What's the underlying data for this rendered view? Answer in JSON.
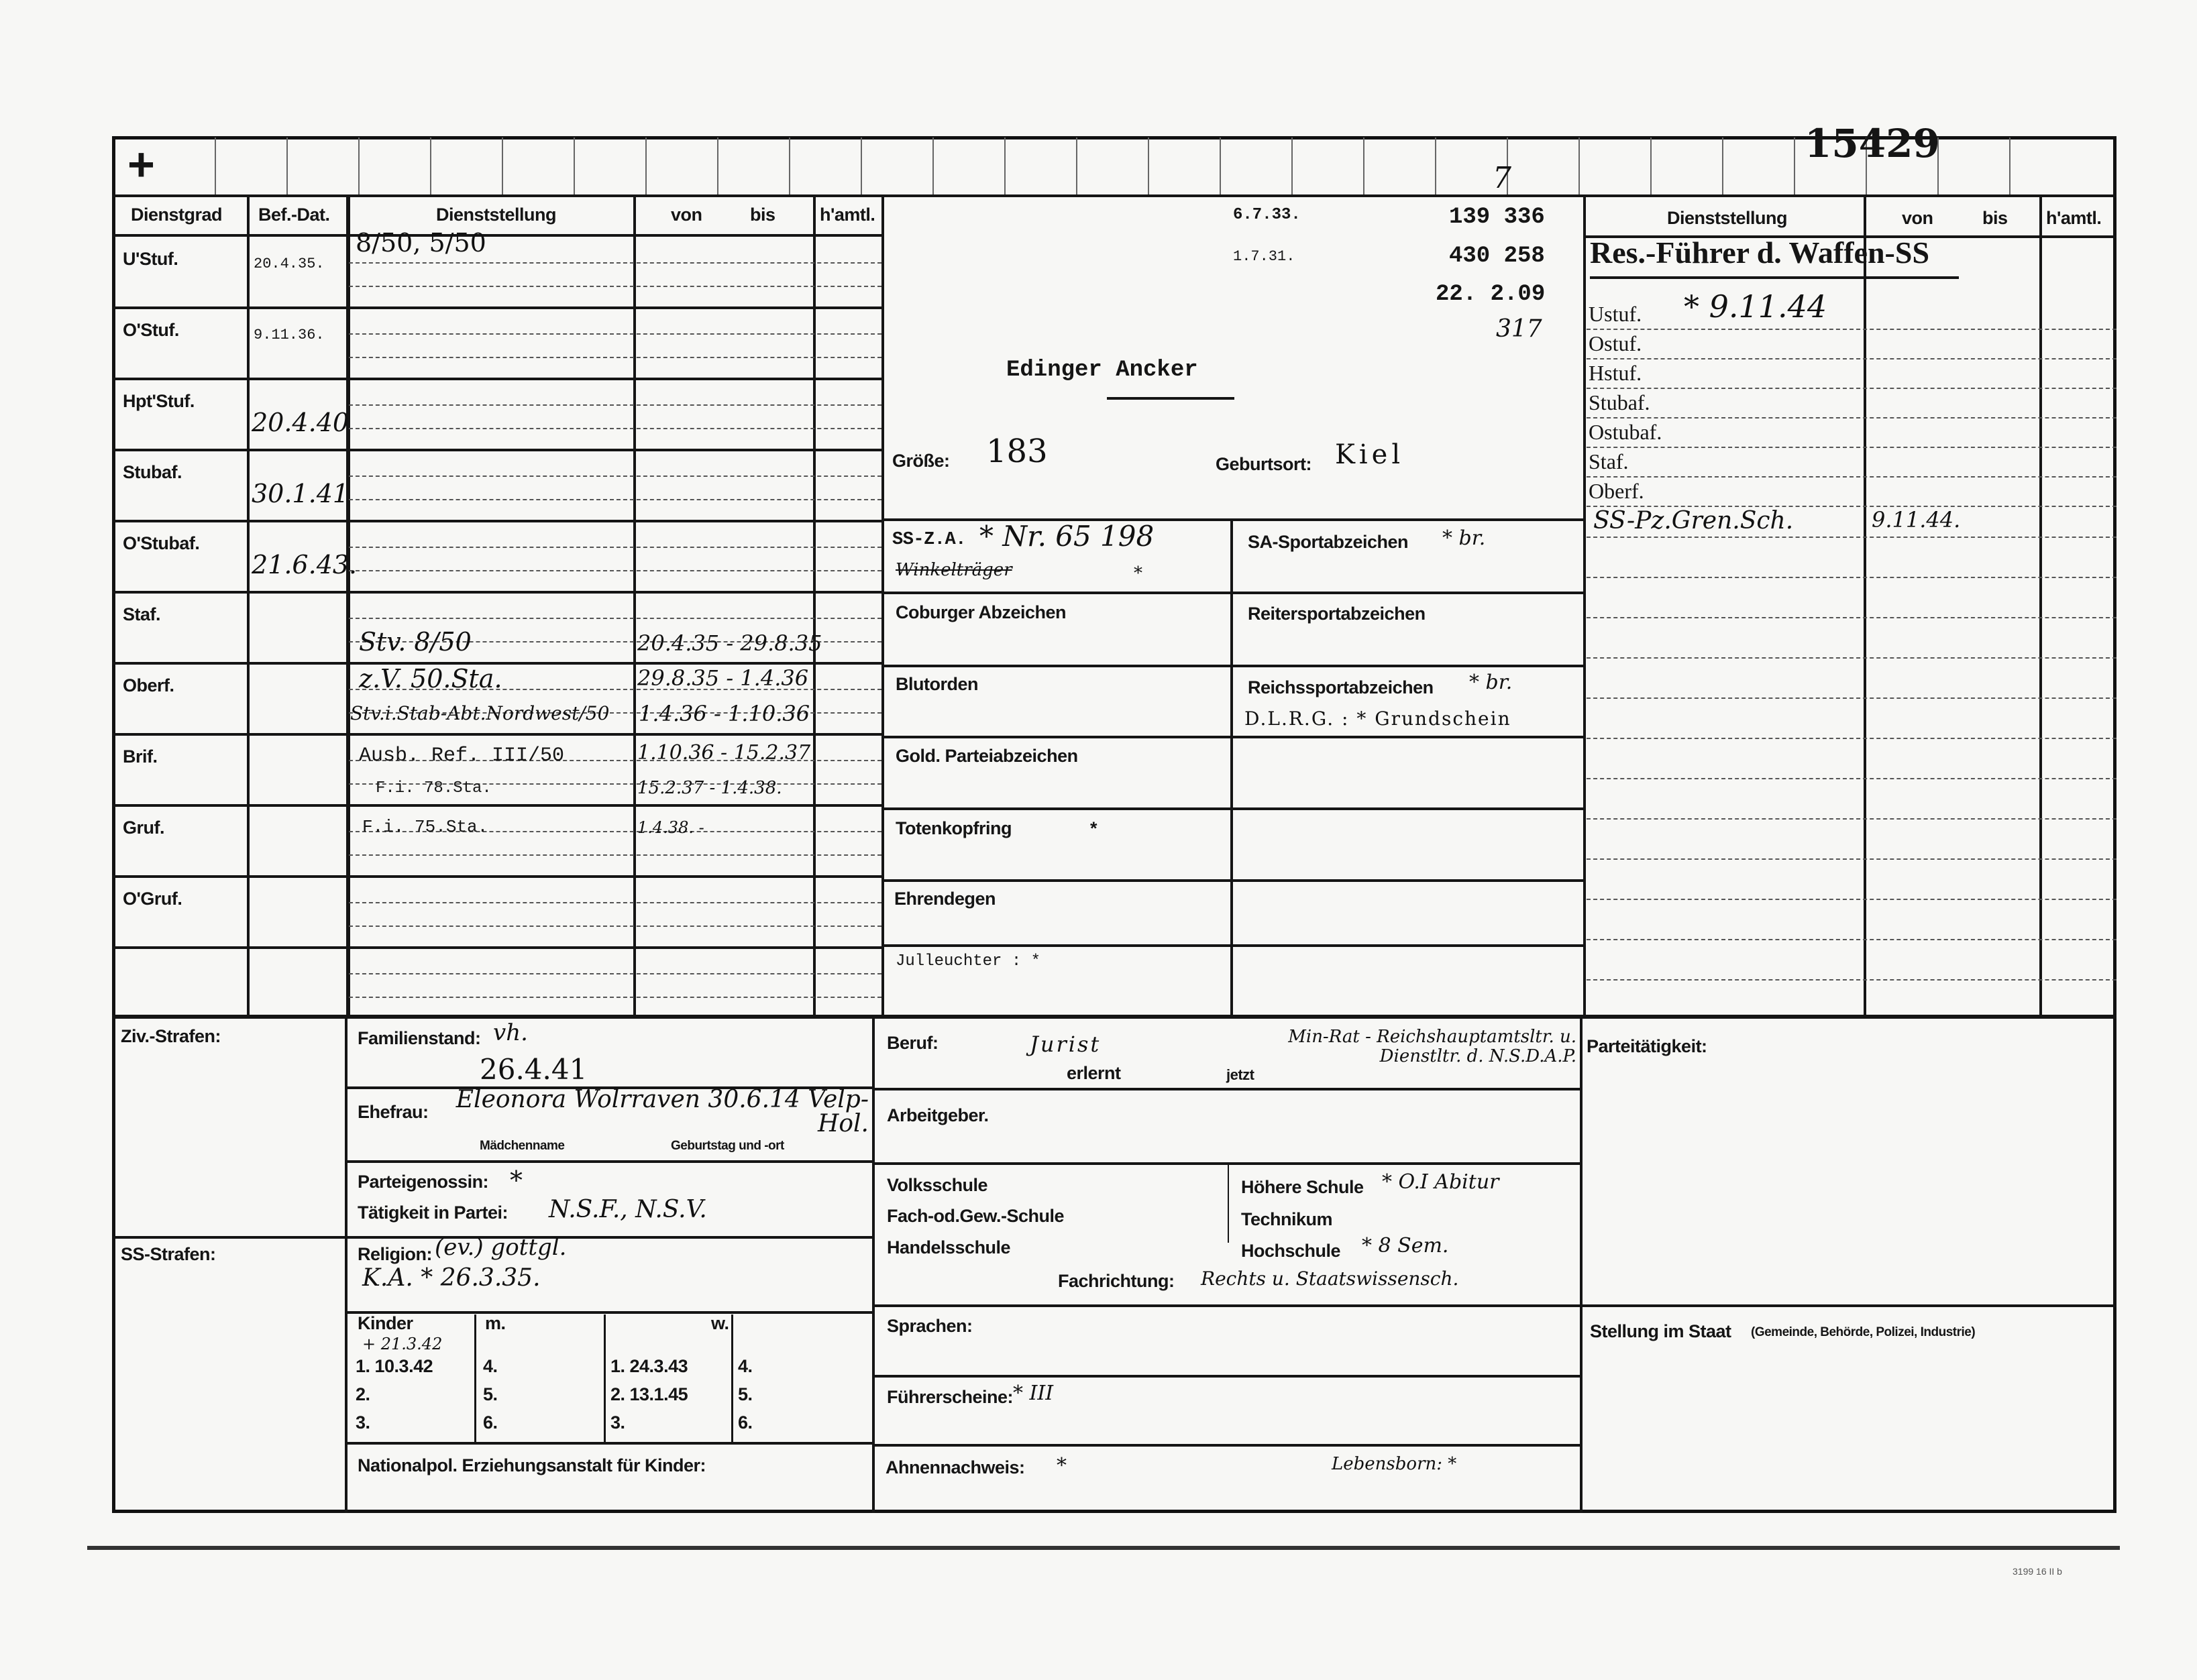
{
  "card_number": "15429",
  "cross_mark": "+",
  "check_mark": "7",
  "left_table": {
    "headers": {
      "rank": "Dienstgrad",
      "date": "Bef.-Dat.",
      "position": "Dienststellung",
      "from": "von",
      "to": "bis",
      "hamtl": "h'amtl."
    },
    "ranks": [
      {
        "rank": "U'Stuf.",
        "date": "20.4.35."
      },
      {
        "rank": "O'Stuf.",
        "date": "9.11.36."
      },
      {
        "rank": "Hpt'Stuf.",
        "date": "20.4.40"
      },
      {
        "rank": "Stubaf.",
        "date": "30.1.41"
      },
      {
        "rank": "O'Stubaf.",
        "date": "21.6.43."
      },
      {
        "rank": "Staf.",
        "date": ""
      },
      {
        "rank": "Oberf.",
        "date": ""
      },
      {
        "rank": "Brif.",
        "date": ""
      },
      {
        "rank": "Gruf.",
        "date": ""
      },
      {
        "rank": "O'Gruf.",
        "date": ""
      },
      {
        "rank": "",
        "date": ""
      }
    ],
    "positions": [
      {
        "position": "8/50, 5/50",
        "period": ""
      },
      {
        "position": "Stv. 8/50",
        "period": "20.4.35 - 29.8.35"
      },
      {
        "position": "z.V. 50.Sta.",
        "period": "29.8.35 - 1.4.36"
      },
      {
        "position": "Stv.i.Stab-Abt.Nordwest/50",
        "period": "1.4.36 - 1.10.36"
      },
      {
        "position": "Ausb. Ref. III/50",
        "period": "1.10.36 - 15.2.37"
      },
      {
        "position": "F.i. 78.Sta.",
        "period": "15.2.37 - 1.4.38."
      },
      {
        "position": "F.i. 75.Sta.",
        "period": "1.4.38. -"
      }
    ]
  },
  "personal": {
    "date1": "6.7.33.",
    "number1": "139 336",
    "date2": "1.7.31.",
    "number2": "430 258",
    "birth_date": "22. 2.09",
    "extra_number": "317",
    "name": "Edinger Ancker",
    "height_label": "Größe:",
    "height": "183",
    "birthplace_label": "Geburtsort:",
    "birthplace": "Kiel"
  },
  "awards": {
    "ss_za_label": "SS-Z.A.",
    "ss_za_value": "* Nr. 65 198",
    "winkeltraeger": "Winkelträger",
    "winkeltraeger_mark": "*",
    "coburger": "Coburger Abzeichen",
    "blutorden": "Blutorden",
    "gold_party": "Gold. Parteiabzeichen",
    "totenkopfring": "Totenkopfring",
    "totenkopfring_mark": "*",
    "ehrendegen": "Ehrendegen",
    "julleuchter": "Julleuchter : *",
    "sa_sport": "SA-Sportabzeichen",
    "sa_sport_value": "* br.",
    "reitersport": "Reitersportabzeichen",
    "reichssport": "Reichssportabzeichen",
    "reichssport_value": "* br.",
    "dlrg": "D.L.R.G. : * Grundschein"
  },
  "right_table": {
    "headers": {
      "position": "Dienststellung",
      "from": "von",
      "to": "bis",
      "hamtl": "h'amtl."
    },
    "unit": "Res.-Führer d. Waffen-SS",
    "ranks": [
      "Ustuf.",
      "Ostuf.",
      "Hstuf.",
      "Stubaf.",
      "Ostubaf.",
      "Staf.",
      "Oberf."
    ],
    "ustuf_value": "* 9.11.44",
    "school_entry": "SS-Pz.Gren.Sch.",
    "school_from": "9.11.44."
  },
  "bottom": {
    "ziv_strafen": "Ziv.-Strafen:",
    "ss_strafen": "SS-Strafen:",
    "familienstand_label": "Familienstand:",
    "familienstand_value": "vh.",
    "marriage_date": "26.4.41",
    "ehefrau_label": "Ehefrau:",
    "ehefrau_value": "Eleonora Wolrraven 30.6.14 Velp-Hol.",
    "maedchenname": "Mädchenname",
    "geburtstag_ort": "Geburtstag und -ort",
    "parteigenossin_label": "Parteigenossin:",
    "parteigenossin_value": "*",
    "taetigkeit_label": "Tätigkeit in Partei:",
    "taetigkeit_value": "N.S.F., N.S.V.",
    "religion_label": "Religion:",
    "religion_value": "(ev.) gottgl.",
    "ka_value": "K.A. * 26.3.35.",
    "kinder_label": "Kinder",
    "m_label": "m.",
    "w_label": "w.",
    "kinder_note": "+ 21.3.42",
    "m": [
      "1. 10.3.42",
      "2.",
      "3.",
      "4.",
      "5.",
      "6."
    ],
    "w": [
      "1. 24.3.43",
      "2. 13.1.45",
      "3.",
      "4.",
      "5.",
      "6."
    ],
    "napola": "Nationalpol. Erziehungsanstalt für Kinder:",
    "beruf_label": "Beruf:",
    "beruf_value": "Jurist",
    "erlernt": "erlernt",
    "jetzt": "jetzt",
    "beruf_now": "Min-Rat - Reichshauptamtsltr. u. Dienstltr. d. N.S.D.A.P.",
    "arbeitgeber": "Arbeitgeber.",
    "volksschule": "Volksschule",
    "fachschule": "Fach-od.Gew.-Schule",
    "handelsschule": "Handelsschule",
    "hoehere_schule": "Höhere Schule",
    "hoehere_value": "* O.I Abitur",
    "technikum": "Technikum",
    "hochschule": "Hochschule",
    "hochschule_value": "* 8 Sem.",
    "fachrichtung_label": "Fachrichtung:",
    "fachrichtung_value": "Rechts u. Staatswissensch.",
    "sprachen": "Sprachen:",
    "fuehrerscheine_label": "Führerscheine:",
    "fuehrerscheine_value": "* III",
    "ahnennachweis_label": "Ahnennachweis:",
    "ahnennachweis_value": "*",
    "lebensborn": "Lebensborn: *",
    "parteitaetigkeit": "Parteitätigkeit:",
    "stellung_label": "Stellung im Staat",
    "stellung_note": "(Gemeinde, Behörde, Polizei, Industrie)",
    "form_code": "3199 16 II b"
  }
}
